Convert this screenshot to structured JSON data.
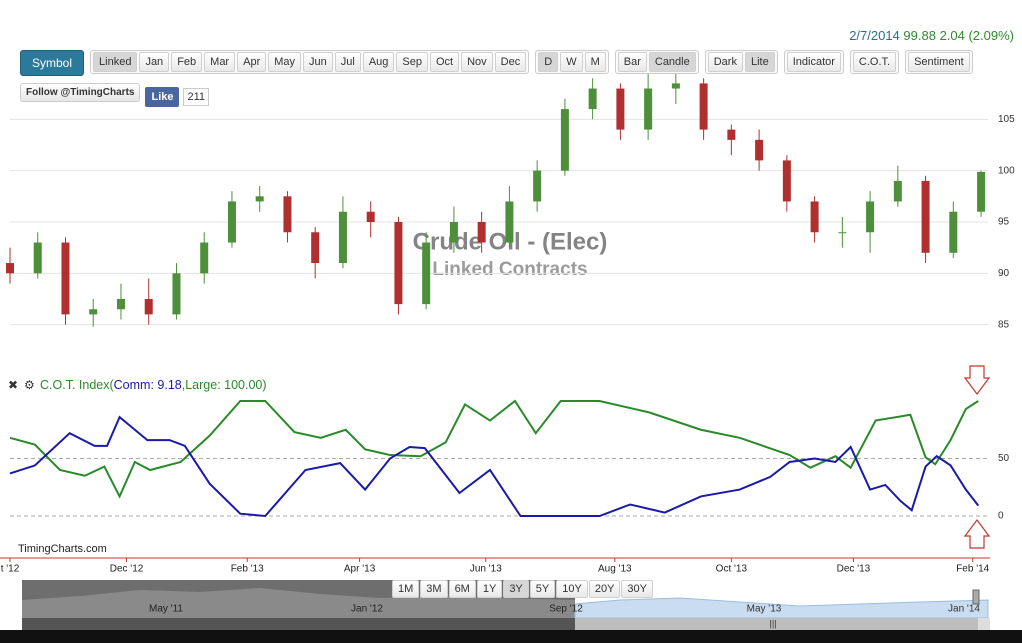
{
  "quote": {
    "date": "2/7/2014",
    "change": "99.88 2.04 (2.09%)"
  },
  "toolbar": {
    "symbol": "Symbol",
    "groups": [
      [
        {
          "label": "Linked",
          "active": true
        },
        {
          "label": "Jan"
        },
        {
          "label": "Feb"
        },
        {
          "label": "Mar"
        },
        {
          "label": "Apr"
        },
        {
          "label": "May"
        },
        {
          "label": "Jun"
        },
        {
          "label": "Jul"
        },
        {
          "label": "Aug"
        },
        {
          "label": "Sep"
        },
        {
          "label": "Oct"
        },
        {
          "label": "Nov"
        },
        {
          "label": "Dec"
        }
      ],
      [
        {
          "label": "D",
          "active": true
        },
        {
          "label": "W"
        },
        {
          "label": "M"
        }
      ],
      [
        {
          "label": "Bar"
        },
        {
          "label": "Candle",
          "active": true
        }
      ],
      [
        {
          "label": "Dark"
        },
        {
          "label": "Lite",
          "active": true
        }
      ],
      [
        {
          "label": "Indicator"
        }
      ],
      [
        {
          "label": "C.O.T."
        }
      ],
      [
        {
          "label": "Sentiment"
        }
      ]
    ]
  },
  "social": {
    "follow": "Follow @TimingCharts",
    "like": "Like",
    "count": "211"
  },
  "chart_data": [
    {
      "type": "candlestick",
      "title": "Crude Oil - (Elec)",
      "subtitle": "Linked Contracts",
      "x": [
        0,
        2,
        4,
        6,
        8,
        10,
        12,
        14,
        16,
        18,
        20,
        22,
        24,
        26,
        28,
        30,
        32,
        34,
        36,
        38,
        40,
        42,
        44,
        46,
        48,
        50,
        52,
        54,
        56,
        58,
        60,
        62,
        64,
        66,
        68,
        70
      ],
      "open": [
        91,
        90,
        93,
        86,
        86.5,
        87.5,
        86,
        90,
        93,
        97,
        97.5,
        94,
        91,
        96,
        95,
        87,
        93,
        95,
        93,
        97,
        100,
        106,
        108,
        104,
        108,
        108.5,
        104,
        103,
        101,
        97,
        94,
        94,
        97,
        99,
        92,
        96
      ],
      "high": [
        92.5,
        94,
        93.5,
        87.5,
        89,
        89.5,
        91,
        94,
        98,
        98.5,
        98,
        94.5,
        97.5,
        97,
        95.5,
        94,
        96.5,
        96,
        98.5,
        101,
        107,
        109,
        108.5,
        109.5,
        110,
        109,
        104.5,
        104,
        101.5,
        97.5,
        95.5,
        98,
        100.5,
        99.5,
        97,
        100
      ],
      "low": [
        89,
        89.5,
        85,
        84.8,
        85.5,
        85,
        85.5,
        89,
        92.5,
        96,
        93,
        89.5,
        90.5,
        93.5,
        86,
        86.5,
        92,
        92,
        92.5,
        96,
        99.5,
        105,
        103,
        103,
        106.5,
        103,
        101.5,
        100,
        96,
        93,
        92.5,
        92,
        96.5,
        91,
        91.5,
        95.5
      ],
      "close": [
        90,
        93,
        86,
        86.5,
        87.5,
        86,
        90,
        93,
        97,
        97.5,
        94,
        91,
        96,
        95,
        87,
        93,
        95,
        93,
        97,
        100,
        106,
        108,
        104,
        108,
        108.5,
        104,
        103,
        101,
        97,
        94,
        94,
        97,
        99,
        92,
        96,
        99.88
      ],
      "up_color": "#4d8f3a",
      "down_color": "#b03030",
      "xlim": [
        0,
        70.5
      ],
      "ylim": [
        83.7,
        110
      ],
      "yticks": [
        85,
        90,
        95,
        100,
        105
      ],
      "grid": true
    },
    {
      "type": "line",
      "title": {
        "prefix": "C.O.T. Index(",
        "comm": "Comm: 9.18",
        "separator": ",",
        "large": "Large: 100.00)"
      },
      "series": [
        {
          "color": "#2a8a2a",
          "x": [
            0,
            1.8,
            3.6,
            5.4,
            6.8,
            7.9,
            9.0,
            10.1,
            12.3,
            14.4,
            16.6,
            18.4,
            20.5,
            22.4,
            24.2,
            25.6,
            27.4,
            29.6,
            31.4,
            32.8,
            34.6,
            36.4,
            37.9,
            39.7,
            42.5,
            46.1,
            49.8,
            52.6,
            56.2,
            57.7,
            59.5,
            60.6,
            62.4,
            64.9,
            66.0,
            66.7,
            67.8,
            68.9,
            69.8
          ],
          "values": [
            68,
            62,
            40,
            35,
            43,
            17,
            47,
            40,
            47,
            70,
            100,
            100,
            73,
            68,
            75,
            58,
            53,
            52,
            64,
            97,
            83,
            100,
            72,
            100,
            100,
            90,
            75,
            68,
            53,
            42,
            52,
            42,
            83,
            88,
            51,
            45,
            66,
            93,
            100
          ]
        },
        {
          "color": "#1a1aa8",
          "x": [
            0,
            1.8,
            4.3,
            6.1,
            7.0,
            7.9,
            9.9,
            11.5,
            12.6,
            14.4,
            16.6,
            18.4,
            21.3,
            23.8,
            25.6,
            27.4,
            28.8,
            29.9,
            32.4,
            34.6,
            36.8,
            39.3,
            42.5,
            44.7,
            47.2,
            49.8,
            52.6,
            54.8,
            56.2,
            58.0,
            59.5,
            60.6,
            62.0,
            63.1,
            64.2,
            65.0,
            66.0,
            66.8,
            67.8,
            68.9,
            69.8
          ],
          "values": [
            37,
            44,
            72,
            61,
            61,
            86,
            66,
            66,
            61,
            28,
            2,
            0,
            40,
            46,
            23,
            50,
            60,
            59,
            20,
            40,
            0,
            0,
            0,
            10,
            3,
            17,
            23,
            34,
            47,
            50,
            47,
            60,
            23,
            27,
            13,
            5,
            43,
            52,
            44,
            23,
            9
          ]
        }
      ],
      "xlim": [
        0,
        70.5
      ],
      "xticks": [
        {
          "value": 0,
          "label": "t '12"
        },
        {
          "value": 8.4,
          "label": "Dec '12"
        },
        {
          "value": 17.1,
          "label": "Feb '13"
        },
        {
          "value": 25.2,
          "label": "Apr '13"
        },
        {
          "value": 34.3,
          "label": "Jun '13"
        },
        {
          "value": 43.6,
          "label": "Aug '13"
        },
        {
          "value": 52.0,
          "label": "Oct '13"
        },
        {
          "value": 60.8,
          "label": "Dec '13"
        },
        {
          "value": 69.4,
          "label": "Feb '14"
        }
      ],
      "ylim": [
        0,
        100
      ],
      "yticks": [
        0,
        50
      ],
      "grid": true
    }
  ],
  "footer": "TimingCharts.com",
  "navigator": {
    "ranges": [
      {
        "label": "1M"
      },
      {
        "label": "3M"
      },
      {
        "label": "6M"
      },
      {
        "label": "1Y"
      },
      {
        "label": "3Y",
        "active": true
      },
      {
        "label": "5Y"
      },
      {
        "label": "10Y"
      },
      {
        "label": "20Y"
      },
      {
        "label": "30Y"
      }
    ],
    "labels": [
      "May '11",
      "Jan '12",
      "Sep '12",
      "May '13",
      "Jan '14"
    ]
  }
}
